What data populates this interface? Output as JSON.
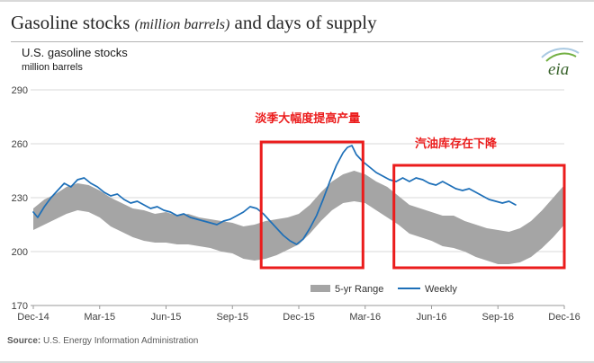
{
  "header": {
    "title_main": "Gasoline stocks",
    "title_italic": "(million barrels)",
    "title_rest": "and days of supply",
    "subtitle": "U.S. gasoline stocks",
    "units": "million barrels",
    "logo_text": "eia"
  },
  "footer": {
    "source_label": "Source:",
    "source_text": "U.S. Energy Information Administration"
  },
  "chart_data": {
    "type": "area",
    "title": "U.S. gasoline stocks",
    "ylabel": "million barrels",
    "x_unit": "months since Dec-2014",
    "x_range": [
      0,
      24
    ],
    "y_range": [
      170,
      290
    ],
    "y_ticks": [
      170,
      200,
      230,
      260,
      290
    ],
    "x_ticks": [
      {
        "pos": 0,
        "label": "Dec-14"
      },
      {
        "pos": 3,
        "label": "Mar-15"
      },
      {
        "pos": 6,
        "label": "Jun-15"
      },
      {
        "pos": 9,
        "label": "Sep-15"
      },
      {
        "pos": 12,
        "label": "Dec-15"
      },
      {
        "pos": 15,
        "label": "Mar-16"
      },
      {
        "pos": 18,
        "label": "Jun-16"
      },
      {
        "pos": 21,
        "label": "Sep-16"
      },
      {
        "pos": 24,
        "label": "Dec-16"
      }
    ],
    "grid": true,
    "colors": {
      "band": "#a5a5a5",
      "weekly": "#1d6fb8",
      "annotation": "#eb1c1c",
      "grid": "#d9d9d9",
      "axis": "#999999"
    },
    "legend": {
      "position": "bottom-center",
      "entries": [
        "5-yr Range",
        "Weekly"
      ]
    },
    "series": [
      {
        "name": "5-yr Range",
        "type": "band",
        "points": [
          [
            0,
            212,
            224
          ],
          [
            0.5,
            215,
            229
          ],
          [
            1,
            218,
            232
          ],
          [
            1.5,
            221,
            236
          ],
          [
            2,
            223,
            238
          ],
          [
            2.5,
            222,
            237
          ],
          [
            3,
            219,
            234
          ],
          [
            3.5,
            214,
            230
          ],
          [
            4,
            211,
            227
          ],
          [
            4.5,
            208,
            224
          ],
          [
            5,
            206,
            223
          ],
          [
            5.5,
            205,
            221
          ],
          [
            6,
            205,
            222
          ],
          [
            6.5,
            204,
            220
          ],
          [
            7,
            204,
            221
          ],
          [
            7.5,
            203,
            219
          ],
          [
            8,
            202,
            218
          ],
          [
            8.5,
            200,
            217
          ],
          [
            9,
            199,
            216
          ],
          [
            9.5,
            196,
            214
          ],
          [
            10,
            195,
            215
          ],
          [
            10.5,
            196,
            217
          ],
          [
            11,
            198,
            218
          ],
          [
            11.5,
            201,
            219
          ],
          [
            12,
            204,
            221
          ],
          [
            12.5,
            210,
            226
          ],
          [
            13,
            217,
            233
          ],
          [
            13.5,
            223,
            239
          ],
          [
            14,
            227,
            243
          ],
          [
            14.5,
            228,
            245
          ],
          [
            15,
            227,
            243
          ],
          [
            15.5,
            223,
            239
          ],
          [
            16,
            219,
            236
          ],
          [
            16.5,
            215,
            231
          ],
          [
            17,
            210,
            226
          ],
          [
            17.5,
            208,
            224
          ],
          [
            18,
            206,
            222
          ],
          [
            18.5,
            203,
            220
          ],
          [
            19,
            202,
            220
          ],
          [
            19.5,
            200,
            217
          ],
          [
            20,
            197,
            215
          ],
          [
            20.5,
            195,
            213
          ],
          [
            21,
            193,
            212
          ],
          [
            21.5,
            193,
            211
          ],
          [
            22,
            194,
            213
          ],
          [
            22.5,
            197,
            217
          ],
          [
            23,
            202,
            223
          ],
          [
            23.5,
            208,
            230
          ],
          [
            24,
            215,
            237
          ]
        ]
      },
      {
        "name": "Weekly",
        "type": "line",
        "points": [
          [
            0,
            222
          ],
          [
            0.2,
            219
          ],
          [
            0.5,
            225
          ],
          [
            0.8,
            230
          ],
          [
            1.1,
            234
          ],
          [
            1.4,
            238
          ],
          [
            1.7,
            236
          ],
          [
            2,
            240
          ],
          [
            2.3,
            241
          ],
          [
            2.6,
            238
          ],
          [
            2.9,
            236
          ],
          [
            3.2,
            233
          ],
          [
            3.5,
            231
          ],
          [
            3.8,
            232
          ],
          [
            4.1,
            229
          ],
          [
            4.4,
            227
          ],
          [
            4.7,
            228
          ],
          [
            5,
            226
          ],
          [
            5.3,
            224
          ],
          [
            5.6,
            225
          ],
          [
            5.9,
            223
          ],
          [
            6.2,
            222
          ],
          [
            6.5,
            220
          ],
          [
            6.8,
            221
          ],
          [
            7.1,
            219
          ],
          [
            7.4,
            218
          ],
          [
            7.7,
            217
          ],
          [
            8,
            216
          ],
          [
            8.3,
            215
          ],
          [
            8.6,
            217
          ],
          [
            8.9,
            218
          ],
          [
            9.2,
            220
          ],
          [
            9.5,
            222
          ],
          [
            9.8,
            225
          ],
          [
            10.1,
            224
          ],
          [
            10.4,
            221
          ],
          [
            10.7,
            217
          ],
          [
            11,
            213
          ],
          [
            11.3,
            209
          ],
          [
            11.6,
            206
          ],
          [
            11.9,
            204
          ],
          [
            12.2,
            207
          ],
          [
            12.5,
            213
          ],
          [
            12.8,
            220
          ],
          [
            13.1,
            229
          ],
          [
            13.4,
            239
          ],
          [
            13.7,
            248
          ],
          [
            14,
            255
          ],
          [
            14.2,
            258
          ],
          [
            14.4,
            259
          ],
          [
            14.6,
            254
          ],
          [
            14.9,
            250
          ],
          [
            15.2,
            247
          ],
          [
            15.5,
            244
          ],
          [
            15.8,
            242
          ],
          [
            16.1,
            240
          ],
          [
            16.4,
            239
          ],
          [
            16.7,
            241
          ],
          [
            17,
            239
          ],
          [
            17.3,
            241
          ],
          [
            17.6,
            240
          ],
          [
            17.9,
            238
          ],
          [
            18.2,
            237
          ],
          [
            18.5,
            239
          ],
          [
            18.8,
            237
          ],
          [
            19.1,
            235
          ],
          [
            19.4,
            234
          ],
          [
            19.7,
            235
          ],
          [
            20,
            233
          ],
          [
            20.3,
            231
          ],
          [
            20.6,
            229
          ],
          [
            20.9,
            228
          ],
          [
            21.2,
            227
          ],
          [
            21.5,
            228
          ],
          [
            21.8,
            226
          ]
        ]
      }
    ],
    "annotations": {
      "boxes": [
        {
          "x0": 10.3,
          "x1": 14.9,
          "y0": 191,
          "y1": 261
        },
        {
          "x0": 16.3,
          "x1": 24.0,
          "y0": 191,
          "y1": 248
        }
      ],
      "labels": [
        {
          "text": "淡季大幅度提高产量",
          "x": 12.4,
          "y": 272
        },
        {
          "text": "汽油库存在下降",
          "x": 19.1,
          "y": 258
        }
      ]
    }
  }
}
